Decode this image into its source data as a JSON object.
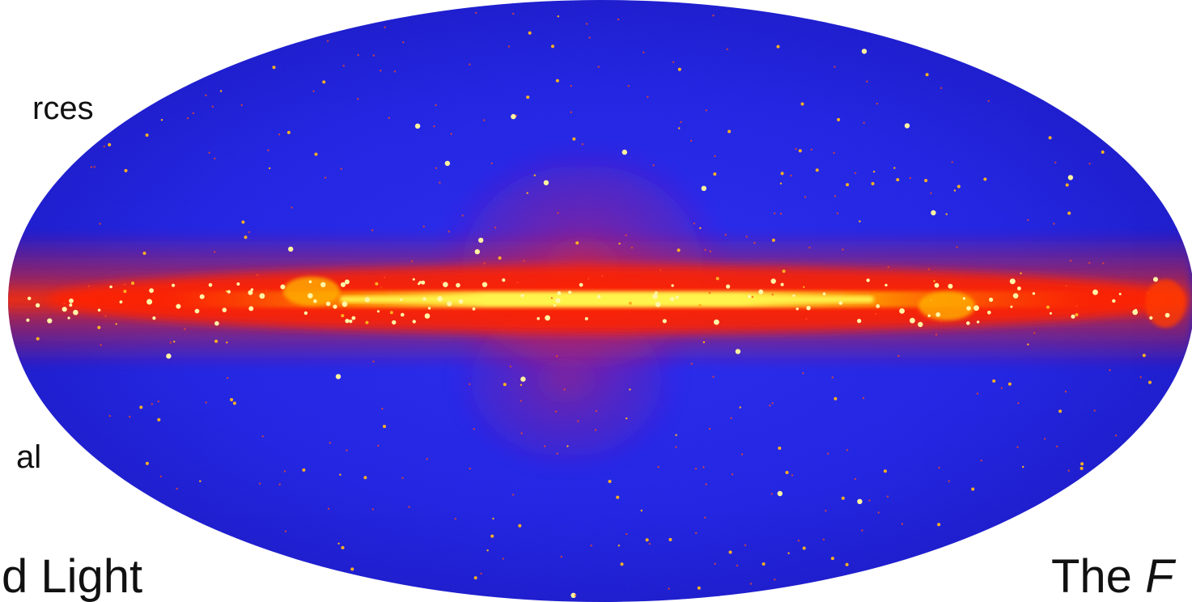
{
  "slide": {
    "fragments": {
      "sources_partial": "rces",
      "al_partial": "al",
      "light_partial": "d Light",
      "the_prefix": "The ",
      "the_italic_partial": "F"
    },
    "image": {
      "description_name": "gamma-ray-all-sky-map",
      "colors": {
        "background": "#1e1ee6",
        "plane_red": "#ff2a00",
        "plane_yellow": "#fff24a",
        "source_dot": "#ffd23a"
      }
    }
  }
}
